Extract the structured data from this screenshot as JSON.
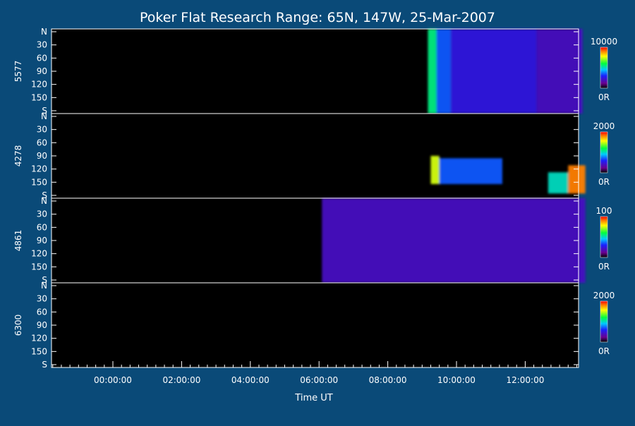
{
  "chart_data": {
    "type": "heatmap",
    "title": "Poker Flat Research Range: 65N, 147W, 25-Mar-2007",
    "xlabel": "Time UT",
    "x_ticks": [
      "00:00:00",
      "02:00:00",
      "04:00:00",
      "06:00:00",
      "08:00:00",
      "10:00:00",
      "12:00:00"
    ],
    "y_ticks": [
      "N",
      "30",
      "60",
      "90",
      "120",
      "150",
      "S"
    ],
    "panels": [
      {
        "name": "5577",
        "cbar_max": "10000",
        "cbar_min": "0R",
        "activity": [
          {
            "start": "09:10",
            "end": "09:25",
            "lat_from": 0,
            "lat_to": 180,
            "level": 0.55
          },
          {
            "start": "09:25",
            "end": "09:50",
            "lat_from": 0,
            "lat_to": 180,
            "level": 0.35
          },
          {
            "start": "09:50",
            "end": "12:20",
            "lat_from": 0,
            "lat_to": 180,
            "level": 0.25
          },
          {
            "start": "12:20",
            "end": "13:40",
            "lat_from": 0,
            "lat_to": 180,
            "level": 0.2
          }
        ]
      },
      {
        "name": "4278",
        "cbar_max": "2000",
        "cbar_min": "0R",
        "activity": [
          {
            "start": "09:15",
            "end": "09:30",
            "lat_from": 90,
            "lat_to": 150,
            "level": 0.75
          },
          {
            "start": "09:30",
            "end": "11:20",
            "lat_from": 95,
            "lat_to": 150,
            "level": 0.35
          },
          {
            "start": "12:40",
            "end": "13:15",
            "lat_from": 125,
            "lat_to": 170,
            "level": 0.5
          },
          {
            "start": "13:15",
            "end": "13:45",
            "lat_from": 110,
            "lat_to": 170,
            "level": 0.9
          }
        ]
      },
      {
        "name": "4861",
        "cbar_max": "100",
        "cbar_min": "0R",
        "activity": [
          {
            "start": "06:05",
            "end": "13:45",
            "lat_from": 0,
            "lat_to": 180,
            "level": 0.2
          }
        ]
      },
      {
        "name": "6300",
        "cbar_max": "2000",
        "cbar_min": "0R",
        "activity": []
      }
    ]
  }
}
